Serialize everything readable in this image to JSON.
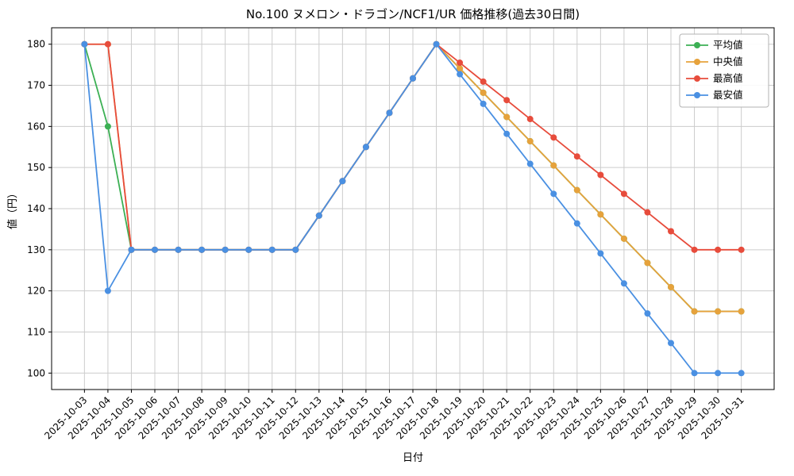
{
  "figure": {
    "background_color": "#ffffff",
    "grid_color": "#cccccc",
    "frame_color": "#000000",
    "tick_color": "#000000"
  },
  "chart_data": {
    "type": "line",
    "title": "No.100 ヌメロン・ドラゴン/NCF1/UR 価格推移(過去30日間)",
    "xlabel": "日付",
    "ylabel": "値（円）",
    "grid": true,
    "marker": "circle",
    "legend_position": "upper right",
    "ylim": [
      96,
      184
    ],
    "yticks": [
      100,
      110,
      120,
      130,
      140,
      150,
      160,
      170,
      180
    ],
    "x": [
      "2025-10-03",
      "2025-10-04",
      "2025-10-05",
      "2025-10-06",
      "2025-10-07",
      "2025-10-08",
      "2025-10-09",
      "2025-10-10",
      "2025-10-11",
      "2025-10-12",
      "2025-10-13",
      "2025-10-14",
      "2025-10-15",
      "2025-10-16",
      "2025-10-17",
      "2025-10-18",
      "2025-10-19",
      "2025-10-20",
      "2025-10-21",
      "2025-10-22",
      "2025-10-23",
      "2025-10-24",
      "2025-10-25",
      "2025-10-26",
      "2025-10-27",
      "2025-10-28",
      "2025-10-29",
      "2025-10-30",
      "2025-10-31"
    ],
    "series": [
      {
        "key": "mean",
        "name": "平均値",
        "color": "#3cb054",
        "values": [
          180,
          160,
          130,
          130,
          130,
          130,
          130,
          130,
          130,
          130,
          138.3,
          146.7,
          155,
          163.3,
          171.7,
          180,
          174.1,
          168.2,
          162.3,
          156.4,
          150.5,
          144.5,
          138.6,
          132.7,
          126.8,
          120.9,
          115,
          115,
          115
        ]
      },
      {
        "key": "median",
        "name": "中央値",
        "color": "#e6a23c",
        "values": [
          180,
          180,
          130,
          130,
          130,
          130,
          130,
          130,
          130,
          130,
          138.3,
          146.7,
          155,
          163.3,
          171.7,
          180,
          174.1,
          168.2,
          162.3,
          156.4,
          150.5,
          144.5,
          138.6,
          132.7,
          126.8,
          120.9,
          115,
          115,
          115
        ]
      },
      {
        "key": "max",
        "name": "最高値",
        "color": "#e74c3c",
        "values": [
          180,
          180,
          130,
          130,
          130,
          130,
          130,
          130,
          130,
          130,
          138.3,
          146.7,
          155,
          163.3,
          171.7,
          180,
          175.5,
          170.9,
          166.4,
          161.8,
          157.3,
          152.7,
          148.2,
          143.6,
          139.1,
          134.5,
          130,
          130,
          130
        ]
      },
      {
        "key": "min",
        "name": "最安値",
        "color": "#4a90e2",
        "values": [
          180,
          120,
          130,
          130,
          130,
          130,
          130,
          130,
          130,
          130,
          138.3,
          146.7,
          155,
          163.3,
          171.7,
          180,
          172.7,
          165.5,
          158.2,
          150.9,
          143.6,
          136.4,
          129.1,
          121.8,
          114.5,
          107.3,
          100,
          100,
          100
        ]
      }
    ]
  }
}
